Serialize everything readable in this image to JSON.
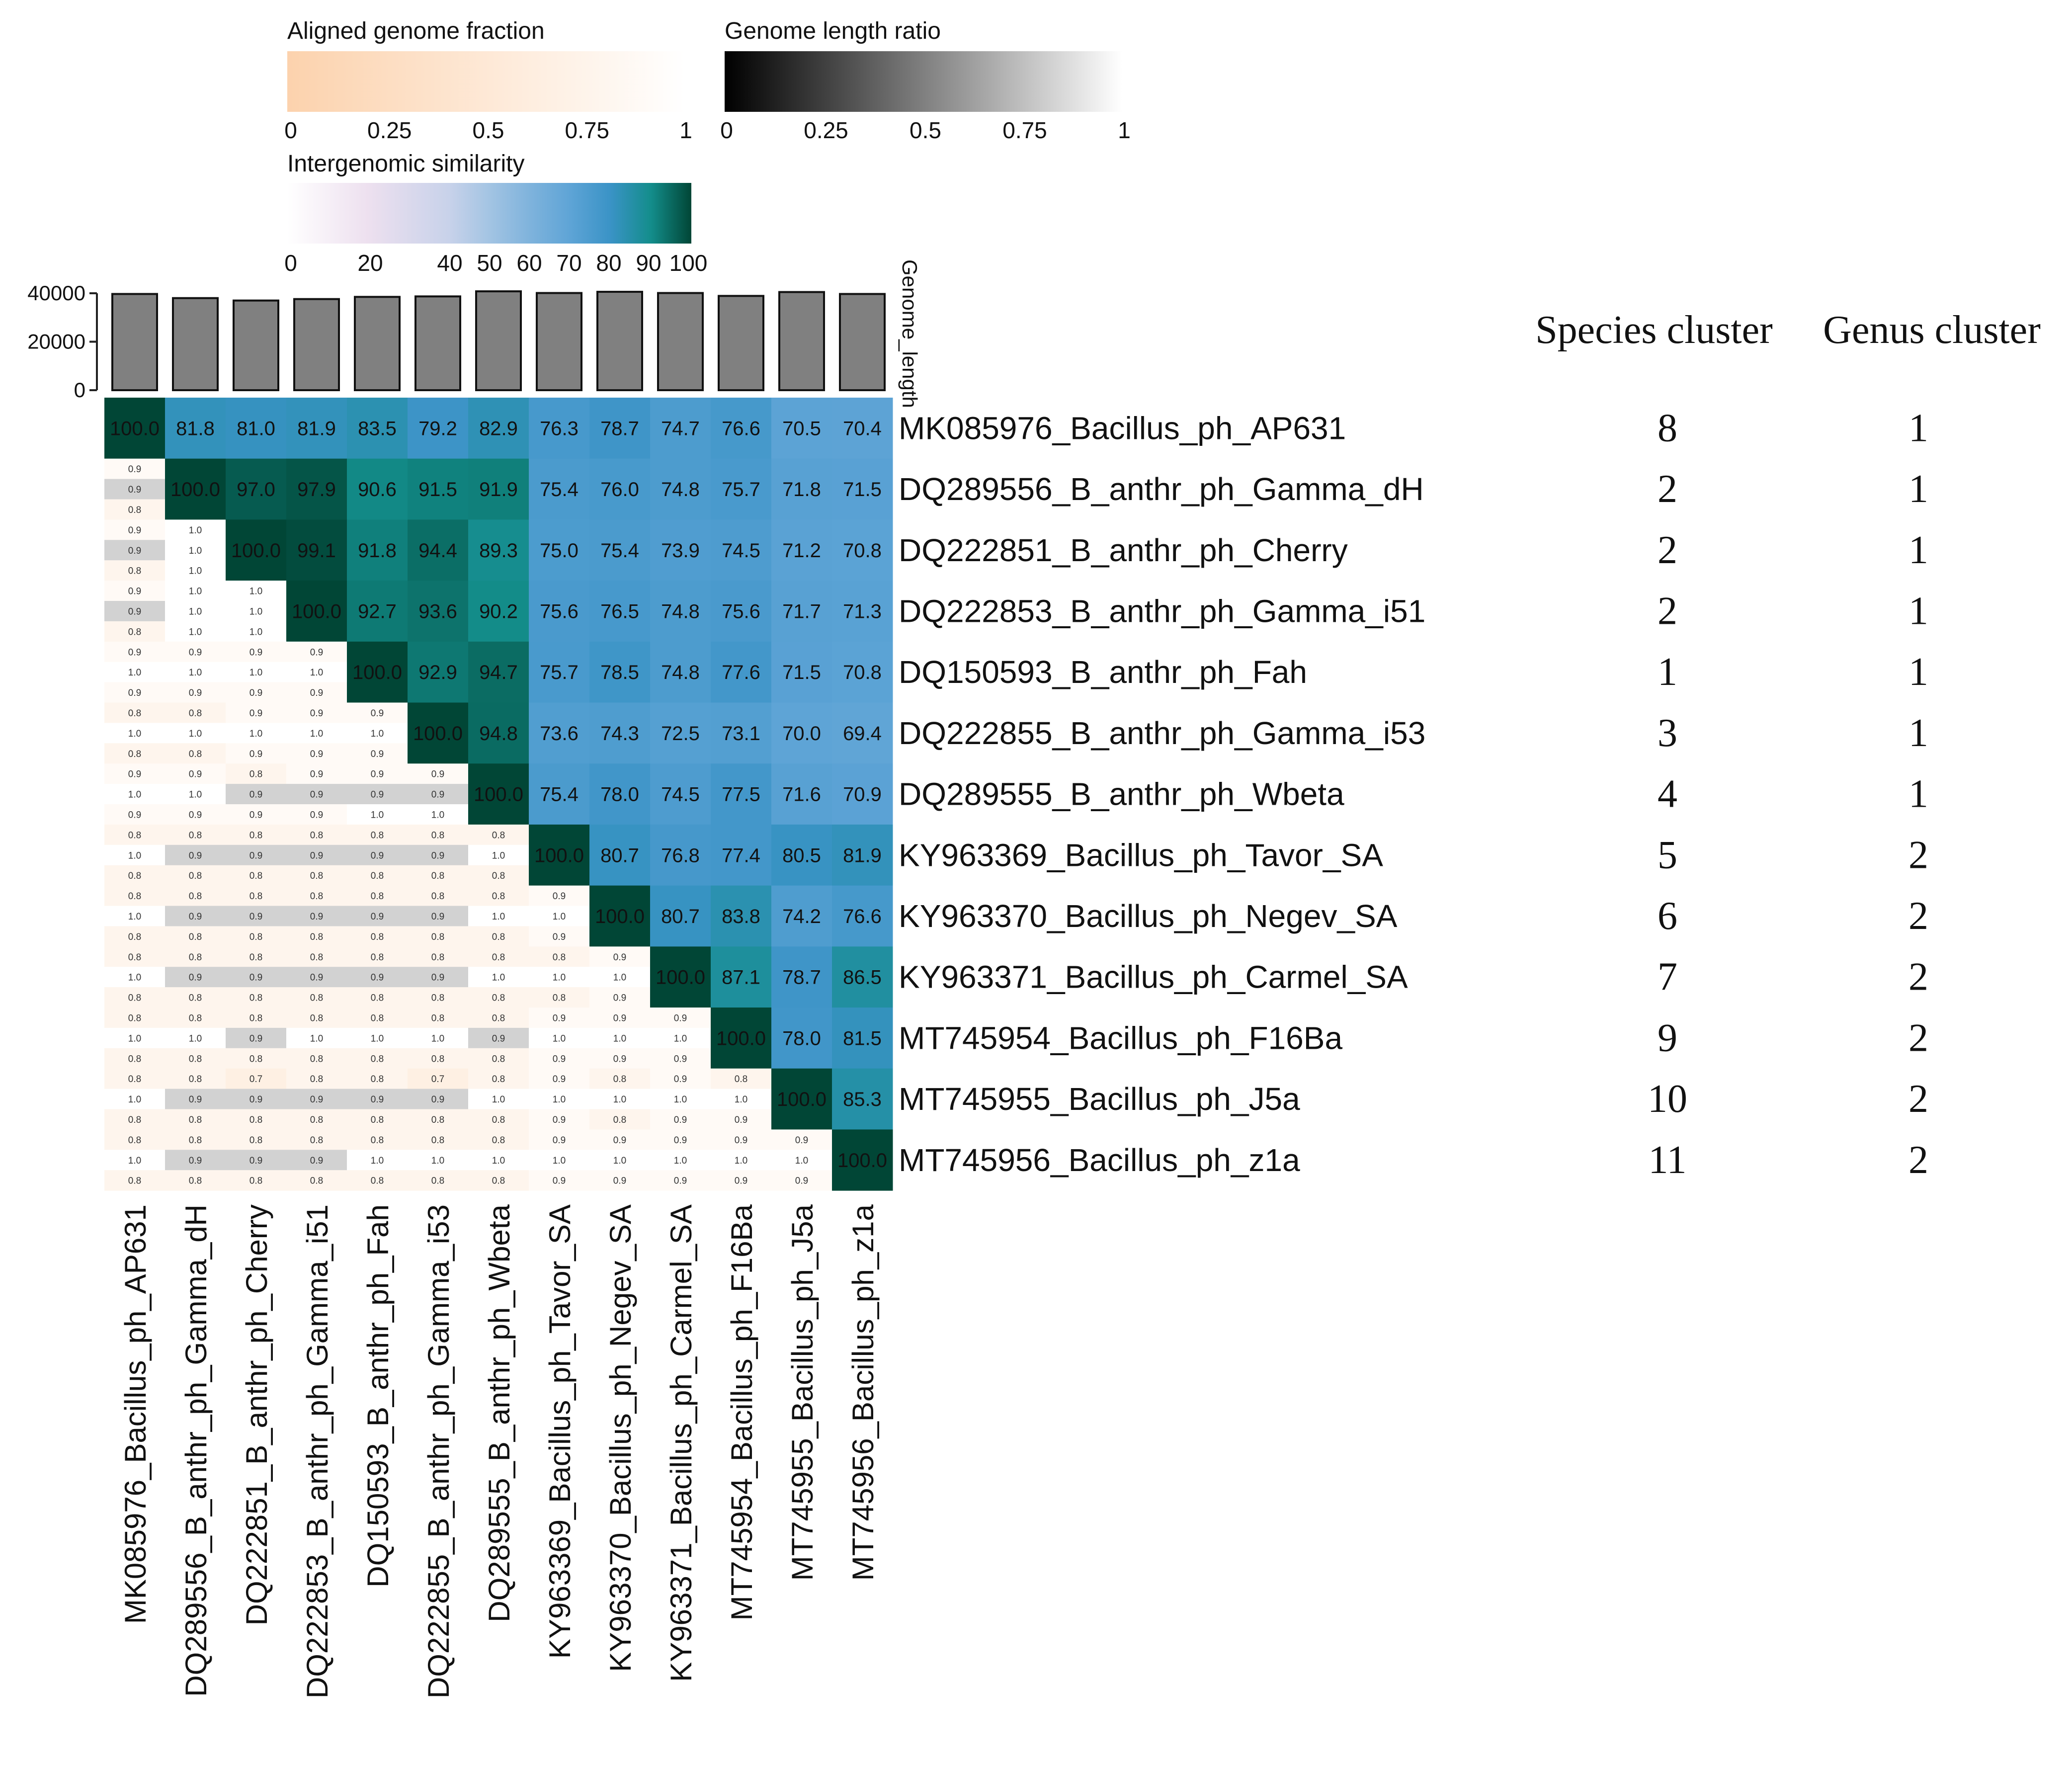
{
  "chart_data": {
    "type": "heatmap",
    "title": "",
    "legends": {
      "aligned": {
        "title": "Aligned genome fraction",
        "ticks": [
          "0",
          "0.25",
          "0.5",
          "0.75",
          "1"
        ],
        "colors": [
          "#fcd2ad",
          "#ffffff"
        ]
      },
      "ratio": {
        "title": "Genome length ratio",
        "ticks": [
          "0",
          "0.25",
          "0.5",
          "0.75",
          "1"
        ],
        "colors": [
          "#000000",
          "#ffffff"
        ]
      },
      "similarity": {
        "title": "Intergenomic similarity",
        "ticks": [
          "0",
          "20",
          "40",
          "50",
          "60",
          "70",
          "80",
          "90",
          "100"
        ],
        "tick_values": [
          0,
          20,
          40,
          50,
          60,
          70,
          80,
          90,
          100
        ],
        "colors": [
          "#ffffff",
          "#ede0ef",
          "#c8d2ea",
          "#a3c4e3",
          "#7fb3dc",
          "#5ea4d6",
          "#3a93c6",
          "#138d8b",
          "#014636"
        ]
      }
    },
    "genome_length": {
      "label": "Genome_length",
      "ylim": [
        0,
        40000
      ],
      "ticks": [
        "0",
        "20000",
        "40000"
      ],
      "values": [
        39700,
        38000,
        37000,
        37600,
        38500,
        38700,
        40800,
        40100,
        40600,
        40100,
        38900,
        40500,
        39700
      ]
    },
    "rows": [
      "MK085976_Bacillus_ph_AP631",
      "DQ289556_B_anthr_ph_Gamma_dH",
      "DQ222851_B_anthr_ph_Cherry",
      "DQ222853_B_anthr_ph_Gamma_i51",
      "DQ150593_B_anthr_ph_Fah",
      "DQ222855_B_anthr_ph_Gamma_i53",
      "DQ289555_B_anthr_ph_Wbeta",
      "KY963369_Bacillus_ph_Tavor_SA",
      "KY963370_Bacillus_ph_Negev_SA",
      "KY963371_Bacillus_ph_Carmel_SA",
      "MT745954_Bacillus_ph_F16Ba",
      "MT745955_Bacillus_ph_J5a",
      "MT745956_Bacillus_ph_z1a"
    ],
    "similarity": [
      [
        "100.0",
        "81.8",
        "81.0",
        "81.9",
        "83.5",
        "79.2",
        "82.9",
        "76.3",
        "78.7",
        "74.7",
        "76.6",
        "70.5",
        "70.4"
      ],
      [
        "",
        "100.0",
        "97.0",
        "97.9",
        "90.6",
        "91.5",
        "91.9",
        "75.4",
        "76.0",
        "74.8",
        "75.7",
        "71.8",
        "71.5"
      ],
      [
        "",
        "",
        "100.0",
        "99.1",
        "91.8",
        "94.4",
        "89.3",
        "75.0",
        "75.4",
        "73.9",
        "74.5",
        "71.2",
        "70.8"
      ],
      [
        "",
        "",
        "",
        "100.0",
        "92.7",
        "93.6",
        "90.2",
        "75.6",
        "76.5",
        "74.8",
        "75.6",
        "71.7",
        "71.3"
      ],
      [
        "",
        "",
        "",
        "",
        "100.0",
        "92.9",
        "94.7",
        "75.7",
        "78.5",
        "74.8",
        "77.6",
        "71.5",
        "70.8"
      ],
      [
        "",
        "",
        "",
        "",
        "",
        "100.0",
        "94.8",
        "73.6",
        "74.3",
        "72.5",
        "73.1",
        "70.0",
        "69.4"
      ],
      [
        "",
        "",
        "",
        "",
        "",
        "",
        "100.0",
        "75.4",
        "78.0",
        "74.5",
        "77.5",
        "71.6",
        "70.9"
      ],
      [
        "",
        "",
        "",
        "",
        "",
        "",
        "",
        "100.0",
        "80.7",
        "76.8",
        "77.4",
        "80.5",
        "81.9"
      ],
      [
        "",
        "",
        "",
        "",
        "",
        "",
        "",
        "",
        "100.0",
        "80.7",
        "83.8",
        "74.2",
        "76.6"
      ],
      [
        "",
        "",
        "",
        "",
        "",
        "",
        "",
        "",
        "",
        "100.0",
        "87.1",
        "78.7",
        "86.5"
      ],
      [
        "",
        "",
        "",
        "",
        "",
        "",
        "",
        "",
        "",
        "",
        "100.0",
        "78.0",
        "81.5"
      ],
      [
        "",
        "",
        "",
        "",
        "",
        "",
        "",
        "",
        "",
        "",
        "",
        "100.0",
        "85.3"
      ],
      [
        "",
        "",
        "",
        "",
        "",
        "",
        "",
        "",
        "",
        "",
        "",
        "",
        "100.0"
      ]
    ],
    "lower_triangle_sublabels": [
      [],
      [
        [
          "0.9",
          "0.9",
          "0.8"
        ]
      ],
      [
        [
          "0.9",
          "0.9",
          "0.8"
        ],
        [
          "1.0",
          "1.0",
          "1.0"
        ]
      ],
      [
        [
          "0.9",
          "0.9",
          "0.8"
        ],
        [
          "1.0",
          "1.0",
          "1.0"
        ],
        [
          "1.0",
          "1.0",
          "1.0"
        ]
      ],
      [
        [
          "0.9",
          "1.0",
          "0.9"
        ],
        [
          "0.9",
          "1.0",
          "0.9"
        ],
        [
          "0.9",
          "1.0",
          "0.9"
        ],
        [
          "0.9",
          "1.0",
          "0.9"
        ]
      ],
      [
        [
          "0.8",
          "1.0",
          "0.8"
        ],
        [
          "0.8",
          "1.0",
          "0.8"
        ],
        [
          "0.9",
          "1.0",
          "0.9"
        ],
        [
          "0.9",
          "1.0",
          "0.9"
        ],
        [
          "0.9",
          "1.0",
          "0.9"
        ]
      ],
      [
        [
          "0.9",
          "1.0",
          "0.9"
        ],
        [
          "0.9",
          "1.0",
          "0.9"
        ],
        [
          "0.8",
          "0.9",
          "0.9"
        ],
        [
          "0.9",
          "0.9",
          "0.9"
        ],
        [
          "0.9",
          "0.9",
          "1.0"
        ],
        [
          "0.9",
          "0.9",
          "1.0"
        ]
      ],
      [
        [
          "0.8",
          "1.0",
          "0.8"
        ],
        [
          "0.8",
          "0.9",
          "0.8"
        ],
        [
          "0.8",
          "0.9",
          "0.8"
        ],
        [
          "0.8",
          "0.9",
          "0.8"
        ],
        [
          "0.8",
          "0.9",
          "0.8"
        ],
        [
          "0.8",
          "0.9",
          "0.8"
        ],
        [
          "0.8",
          "1.0",
          "0.8"
        ]
      ],
      [
        [
          "0.8",
          "1.0",
          "0.8"
        ],
        [
          "0.8",
          "0.9",
          "0.8"
        ],
        [
          "0.8",
          "0.9",
          "0.8"
        ],
        [
          "0.8",
          "0.9",
          "0.8"
        ],
        [
          "0.8",
          "0.9",
          "0.8"
        ],
        [
          "0.8",
          "0.9",
          "0.8"
        ],
        [
          "0.8",
          "1.0",
          "0.8"
        ],
        [
          "0.9",
          "1.0",
          "0.9"
        ]
      ],
      [
        [
          "0.8",
          "1.0",
          "0.8"
        ],
        [
          "0.8",
          "0.9",
          "0.8"
        ],
        [
          "0.8",
          "0.9",
          "0.8"
        ],
        [
          "0.8",
          "0.9",
          "0.8"
        ],
        [
          "0.8",
          "0.9",
          "0.8"
        ],
        [
          "0.8",
          "0.9",
          "0.8"
        ],
        [
          "0.8",
          "1.0",
          "0.8"
        ],
        [
          "0.8",
          "1.0",
          "0.8"
        ],
        [
          "0.9",
          "1.0",
          "0.9"
        ]
      ],
      [
        [
          "0.8",
          "1.0",
          "0.8"
        ],
        [
          "0.8",
          "1.0",
          "0.8"
        ],
        [
          "0.8",
          "0.9",
          "0.8"
        ],
        [
          "0.8",
          "1.0",
          "0.8"
        ],
        [
          "0.8",
          "1.0",
          "0.8"
        ],
        [
          "0.8",
          "1.0",
          "0.8"
        ],
        [
          "0.8",
          "0.9",
          "0.8"
        ],
        [
          "0.9",
          "1.0",
          "0.9"
        ],
        [
          "0.9",
          "1.0",
          "0.9"
        ],
        [
          "0.9",
          "1.0",
          "0.9"
        ]
      ],
      [
        [
          "0.8",
          "1.0",
          "0.8"
        ],
        [
          "0.8",
          "0.9",
          "0.8"
        ],
        [
          "0.7",
          "0.9",
          "0.8"
        ],
        [
          "0.8",
          "0.9",
          "0.8"
        ],
        [
          "0.8",
          "0.9",
          "0.8"
        ],
        [
          "0.7",
          "0.9",
          "0.8"
        ],
        [
          "0.8",
          "1.0",
          "0.8"
        ],
        [
          "0.9",
          "1.0",
          "0.9"
        ],
        [
          "0.8",
          "1.0",
          "0.8"
        ],
        [
          "0.9",
          "1.0",
          "0.9"
        ],
        [
          "0.8",
          "1.0",
          "0.9"
        ]
      ],
      [
        [
          "0.8",
          "1.0",
          "0.8"
        ],
        [
          "0.8",
          "0.9",
          "0.8"
        ],
        [
          "0.8",
          "0.9",
          "0.8"
        ],
        [
          "0.8",
          "0.9",
          "0.8"
        ],
        [
          "0.8",
          "1.0",
          "0.8"
        ],
        [
          "0.8",
          "1.0",
          "0.8"
        ],
        [
          "0.8",
          "1.0",
          "0.8"
        ],
        [
          "0.9",
          "1.0",
          "0.9"
        ],
        [
          "0.9",
          "1.0",
          "0.9"
        ],
        [
          "0.9",
          "1.0",
          "0.9"
        ],
        [
          "0.9",
          "1.0",
          "0.9"
        ],
        [
          "0.9",
          "1.0",
          "0.9"
        ]
      ]
    ],
    "clusters": {
      "species_header": "Species cluster",
      "genus_header": "Genus cluster",
      "species": [
        "8",
        "2",
        "2",
        "2",
        "1",
        "3",
        "4",
        "5",
        "6",
        "7",
        "9",
        "10",
        "11"
      ],
      "genus": [
        "1",
        "1",
        "1",
        "1",
        "1",
        "1",
        "1",
        "2",
        "2",
        "2",
        "2",
        "2",
        "2"
      ]
    }
  }
}
